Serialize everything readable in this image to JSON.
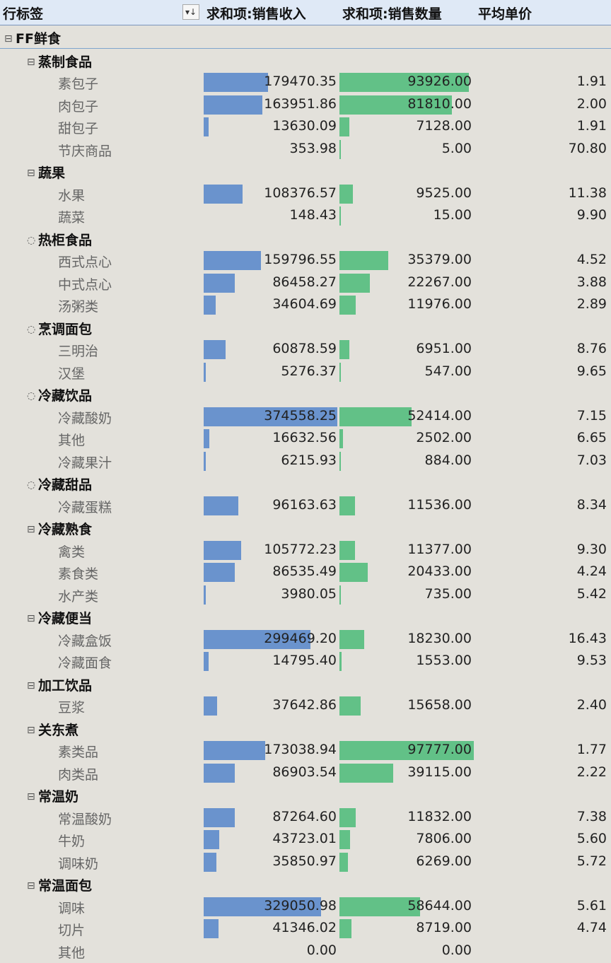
{
  "header": {
    "row_label": "行标签",
    "filter_icon": "sort-filter-icon",
    "filter_glyph": "▾↓",
    "revenue_col": "求和项:销售收入",
    "quantity_col": "求和项:销售数量",
    "avg_col": "平均单价"
  },
  "colors": {
    "revenue_bar": "#6a93cd",
    "quantity_bar": "#62c187",
    "header_bg": "#dfe9f6",
    "background": "#e3e1db"
  },
  "top_group": {
    "label": "FF鲜食",
    "toggle": "⊟"
  },
  "groups": [
    {
      "label": "蒸制食品",
      "toggle": "⊟",
      "items": [
        {
          "label": "素包子",
          "revenue": "179470.35",
          "quantity": "93926.00",
          "avg": "1.91",
          "rev_value": 179470.35,
          "qty_value": 93926
        },
        {
          "label": "肉包子",
          "revenue": "163951.86",
          "quantity": "81810.00",
          "avg": "2.00",
          "rev_value": 163951.86,
          "qty_value": 81810
        },
        {
          "label": "甜包子",
          "revenue": "13630.09",
          "quantity": "7128.00",
          "avg": "1.91",
          "rev_value": 13630.09,
          "qty_value": 7128
        },
        {
          "label": "节庆商品",
          "revenue": "353.98",
          "quantity": "5.00",
          "avg": "70.80",
          "rev_value": 353.98,
          "qty_value": 5
        }
      ]
    },
    {
      "label": "蔬果",
      "toggle": "⊟",
      "items": [
        {
          "label": "水果",
          "revenue": "108376.57",
          "quantity": "9525.00",
          "avg": "11.38",
          "rev_value": 108376.57,
          "qty_value": 9525
        },
        {
          "label": "蔬菜",
          "revenue": "148.43",
          "quantity": "15.00",
          "avg": "9.90",
          "rev_value": 148.43,
          "qty_value": 15
        }
      ]
    },
    {
      "label": "热柜食品",
      "toggle": "◌",
      "items": [
        {
          "label": "西式点心",
          "revenue": "159796.55",
          "quantity": "35379.00",
          "avg": "4.52",
          "rev_value": 159796.55,
          "qty_value": 35379
        },
        {
          "label": "中式点心",
          "revenue": "86458.27",
          "quantity": "22267.00",
          "avg": "3.88",
          "rev_value": 86458.27,
          "qty_value": 22267
        },
        {
          "label": "汤粥类",
          "revenue": "34604.69",
          "quantity": "11976.00",
          "avg": "2.89",
          "rev_value": 34604.69,
          "qty_value": 11976
        }
      ]
    },
    {
      "label": "烹调面包",
      "toggle": "◌",
      "items": [
        {
          "label": "三明治",
          "revenue": "60878.59",
          "quantity": "6951.00",
          "avg": "8.76",
          "rev_value": 60878.59,
          "qty_value": 6951
        },
        {
          "label": "汉堡",
          "revenue": "5276.37",
          "quantity": "547.00",
          "avg": "9.65",
          "rev_value": 5276.37,
          "qty_value": 547
        }
      ]
    },
    {
      "label": "冷藏饮品",
      "toggle": "◌",
      "items": [
        {
          "label": "冷藏酸奶",
          "revenue": "374558.25",
          "quantity": "52414.00",
          "avg": "7.15",
          "rev_value": 374558.25,
          "qty_value": 52414
        },
        {
          "label": "其他",
          "revenue": "16632.56",
          "quantity": "2502.00",
          "avg": "6.65",
          "rev_value": 16632.56,
          "qty_value": 2502
        },
        {
          "label": "冷藏果汁",
          "revenue": "6215.93",
          "quantity": "884.00",
          "avg": "7.03",
          "rev_value": 6215.93,
          "qty_value": 884
        }
      ]
    },
    {
      "label": "冷藏甜品",
      "toggle": "◌",
      "items": [
        {
          "label": "冷藏蛋糕",
          "revenue": "96163.63",
          "quantity": "11536.00",
          "avg": "8.34",
          "rev_value": 96163.63,
          "qty_value": 11536
        }
      ]
    },
    {
      "label": "冷藏熟食",
      "toggle": "⊟",
      "items": [
        {
          "label": "禽类",
          "revenue": "105772.23",
          "quantity": "11377.00",
          "avg": "9.30",
          "rev_value": 105772.23,
          "qty_value": 11377
        },
        {
          "label": "素食类",
          "revenue": "86535.49",
          "quantity": "20433.00",
          "avg": "4.24",
          "rev_value": 86535.49,
          "qty_value": 20433
        },
        {
          "label": "水产类",
          "revenue": "3980.05",
          "quantity": "735.00",
          "avg": "5.42",
          "rev_value": 3980.05,
          "qty_value": 735
        }
      ]
    },
    {
      "label": "冷藏便当",
      "toggle": "⊟",
      "items": [
        {
          "label": "冷藏盒饭",
          "revenue": "299469.20",
          "quantity": "18230.00",
          "avg": "16.43",
          "rev_value": 299469.2,
          "qty_value": 18230
        },
        {
          "label": "冷藏面食",
          "revenue": "14795.40",
          "quantity": "1553.00",
          "avg": "9.53",
          "rev_value": 14795.4,
          "qty_value": 1553
        }
      ]
    },
    {
      "label": "加工饮品",
      "toggle": "⊟",
      "items": [
        {
          "label": "豆浆",
          "revenue": "37642.86",
          "quantity": "15658.00",
          "avg": "2.40",
          "rev_value": 37642.86,
          "qty_value": 15658
        }
      ]
    },
    {
      "label": "关东煮",
      "toggle": "⊟",
      "items": [
        {
          "label": "素类品",
          "revenue": "173038.94",
          "quantity": "97777.00",
          "avg": "1.77",
          "rev_value": 173038.94,
          "qty_value": 97777
        },
        {
          "label": "肉类品",
          "revenue": "86903.54",
          "quantity": "39115.00",
          "avg": "2.22",
          "rev_value": 86903.54,
          "qty_value": 39115
        }
      ]
    },
    {
      "label": "常温奶",
      "toggle": "⊟",
      "items": [
        {
          "label": "常温酸奶",
          "revenue": "87264.60",
          "quantity": "11832.00",
          "avg": "7.38",
          "rev_value": 87264.6,
          "qty_value": 11832
        },
        {
          "label": "牛奶",
          "revenue": "43723.01",
          "quantity": "7806.00",
          "avg": "5.60",
          "rev_value": 43723.01,
          "qty_value": 7806
        },
        {
          "label": "调味奶",
          "revenue": "35850.97",
          "quantity": "6269.00",
          "avg": "5.72",
          "rev_value": 35850.97,
          "qty_value": 6269
        }
      ]
    },
    {
      "label": "常温面包",
      "toggle": "⊟",
      "items": [
        {
          "label": "调味",
          "revenue": "329050.98",
          "quantity": "58644.00",
          "avg": "5.61",
          "rev_value": 329050.98,
          "qty_value": 58644
        },
        {
          "label": "切片",
          "revenue": "41346.02",
          "quantity": "8719.00",
          "avg": "4.74",
          "rev_value": 41346.02,
          "qty_value": 8719
        },
        {
          "label": "其他",
          "revenue": "0.00",
          "quantity": "0.00",
          "avg": "",
          "rev_value": 0,
          "qty_value": 0
        }
      ]
    }
  ]
}
